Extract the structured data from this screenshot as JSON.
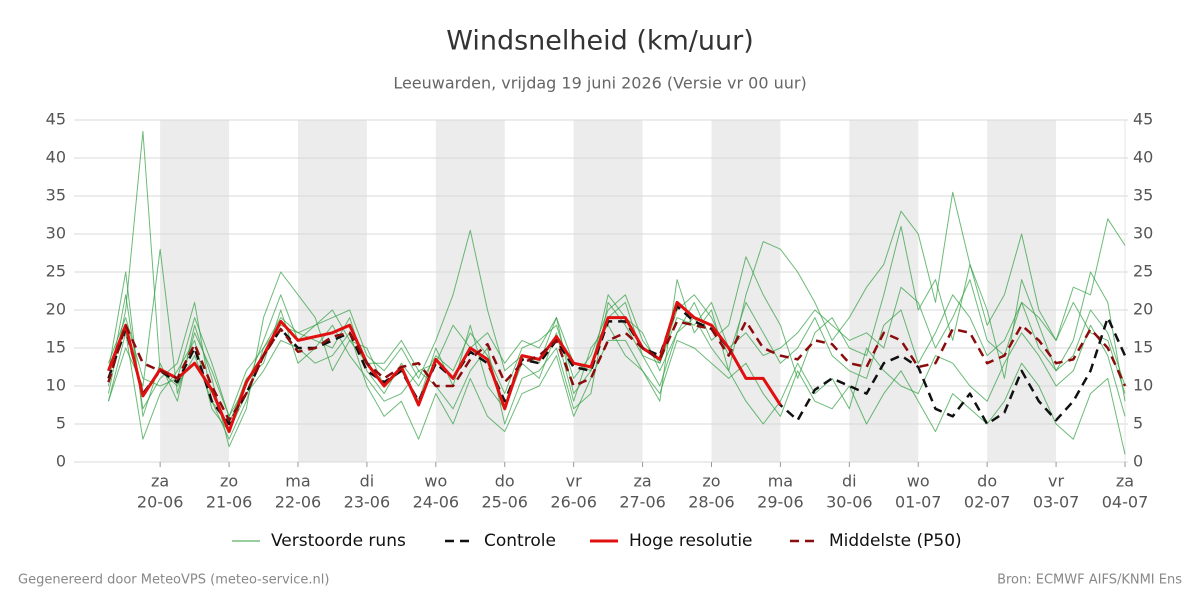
{
  "chart_data": {
    "type": "line",
    "title": "Windsnelheid (km/uur)",
    "subtitle": "Leeuwarden, vrijdag 19 juni 2026 (Versie vr 00 uur)",
    "footer_left": "Gegenereerd door MeteoVPS (meteo-service.nl)",
    "footer_right": "Bron: ECMWF AIFS/KNMI Ens",
    "xlim": [
      -2,
      59
    ],
    "xticks": [
      {
        "value": 3,
        "label": "za",
        "date": "20-06"
      },
      {
        "value": 7,
        "label": "zo",
        "date": "21-06"
      },
      {
        "value": 11,
        "label": "ma",
        "date": "22-06"
      },
      {
        "value": 15,
        "label": "di",
        "date": "23-06"
      },
      {
        "value": 19,
        "label": "wo",
        "date": "24-06"
      },
      {
        "value": 23,
        "label": "do",
        "date": "25-06"
      },
      {
        "value": 27,
        "label": "vr",
        "date": "26-06"
      },
      {
        "value": 31,
        "label": "za",
        "date": "27-06"
      },
      {
        "value": 35,
        "label": "zo",
        "date": "28-06"
      },
      {
        "value": 39,
        "label": "ma",
        "date": "29-06"
      },
      {
        "value": 43,
        "label": "di",
        "date": "30-06"
      },
      {
        "value": 47,
        "label": "wo",
        "date": "01-07"
      },
      {
        "value": 51,
        "label": "do",
        "date": "02-07"
      },
      {
        "value": 55,
        "label": "vr",
        "date": "03-07"
      },
      {
        "value": 59,
        "label": "za",
        "date": "04-07"
      }
    ],
    "shaded_bands": [
      [
        3,
        7
      ],
      [
        11,
        15
      ],
      [
        19,
        23
      ],
      [
        27,
        31
      ],
      [
        35,
        39
      ],
      [
        43,
        47
      ],
      [
        51,
        55
      ]
    ],
    "ylim": [
      0,
      45
    ],
    "yticks": [
      0,
      5,
      10,
      15,
      20,
      25,
      30,
      35,
      40,
      45
    ],
    "y2lim": [
      0,
      45
    ],
    "y2ticks": [
      0,
      5,
      10,
      15,
      20,
      25,
      30,
      35,
      40,
      45
    ],
    "grid": true,
    "legend": "bottom",
    "ensemble": {
      "name": "Verstoorde runs",
      "color": "#2e9e3e",
      "members": [
        [
          9,
          20,
          43.5,
          12,
          10,
          14,
          8,
          3,
          8,
          15,
          18,
          17,
          16,
          15,
          19,
          12,
          9,
          13,
          10,
          14,
          12,
          17,
          14,
          9,
          15,
          16,
          18,
          11,
          14,
          20,
          22,
          16,
          13,
          20,
          22,
          19,
          14,
          21,
          17,
          13,
          15,
          19,
          14,
          12,
          11,
          18,
          20,
          13,
          17,
          22,
          19,
          14,
          16,
          21,
          15,
          12,
          14,
          20,
          17,
          10
        ],
        [
          8,
          15,
          10,
          28,
          9,
          17,
          12,
          6,
          10,
          16,
          22,
          16,
          18,
          19,
          20,
          14,
          12,
          15,
          11,
          16,
          22,
          30.5,
          20,
          12,
          14,
          13,
          19,
          9,
          12,
          22,
          19,
          17,
          12,
          17,
          21,
          16,
          18,
          27,
          22,
          18,
          11,
          17,
          19,
          15,
          14,
          22,
          31,
          20,
          24,
          16,
          26,
          20,
          11,
          24,
          18,
          12,
          16,
          25,
          21,
          8
        ],
        [
          10,
          22,
          7,
          11,
          13,
          21,
          8,
          5,
          11,
          13,
          20,
          13,
          15,
          18,
          14,
          11,
          8,
          9,
          12,
          10,
          7,
          12,
          15,
          5,
          11,
          12,
          15,
          7,
          9,
          21,
          18,
          14,
          10,
          17,
          19,
          15,
          12,
          8,
          5,
          8,
          13,
          9,
          11,
          7,
          15,
          12,
          10,
          9,
          14,
          13,
          10,
          8,
          13,
          17,
          14,
          10,
          12,
          18,
          14,
          6
        ],
        [
          12,
          25,
          6,
          13,
          8,
          18,
          11,
          2,
          7,
          19,
          25,
          22,
          19,
          12,
          16,
          15,
          10,
          12,
          8,
          15,
          10,
          18,
          10,
          7,
          13,
          11,
          17,
          8,
          15,
          18,
          14,
          12,
          8,
          24,
          17,
          20,
          12,
          22,
          29,
          28,
          25,
          21,
          16,
          19,
          23,
          26,
          33,
          30,
          21,
          35.5,
          26,
          18,
          22,
          30,
          20,
          16,
          23,
          22,
          32,
          28.5
        ],
        [
          8,
          17,
          3,
          9,
          12,
          16,
          7,
          4,
          9,
          12,
          16,
          15,
          13,
          14,
          17,
          10,
          6,
          8,
          3,
          9,
          5,
          11,
          6,
          4,
          9,
          10,
          14,
          6,
          11,
          16,
          16,
          12,
          9,
          16,
          15,
          13,
          11,
          13,
          9,
          6,
          12,
          8,
          7,
          10,
          5,
          9,
          12,
          8,
          4,
          9,
          7,
          5,
          8,
          13,
          10,
          5,
          3,
          9,
          11,
          1
        ],
        [
          13,
          19,
          11,
          10,
          11,
          19,
          13,
          6,
          12,
          15,
          19,
          17,
          18,
          20,
          16,
          13,
          13,
          16,
          12,
          13,
          18,
          15,
          17,
          13,
          16,
          15,
          19,
          13,
          12,
          19,
          21,
          14,
          13,
          19,
          18,
          21,
          15,
          17,
          14,
          15,
          17,
          20,
          18,
          16,
          17,
          15,
          23,
          21,
          15,
          19,
          24,
          16,
          14,
          21,
          19,
          16,
          21,
          17,
          16,
          9
        ]
      ]
    },
    "series": [
      {
        "name": "Controle",
        "color": "#111111",
        "dash": true,
        "width": 2.5,
        "values": [
          11,
          17.5,
          9,
          12,
          10.5,
          15,
          8,
          5,
          9,
          14,
          17.5,
          15,
          15,
          16,
          17,
          12,
          10.5,
          12,
          8,
          13,
          11,
          14.5,
          13,
          8,
          13.5,
          13,
          16,
          12.5,
          12,
          18.5,
          18.5,
          15,
          14,
          20.5,
          18.5,
          17.5,
          15,
          11,
          11,
          7.5,
          5.5,
          9.5,
          11,
          10,
          9,
          13,
          14,
          12.5,
          7,
          6,
          9,
          5,
          6.5,
          12,
          8,
          5.5,
          8,
          12,
          19,
          14
        ]
      },
      {
        "name": "Hoge resolutie",
        "color": "#e01010",
        "dash": false,
        "width": 3,
        "values": [
          12,
          18,
          8.7,
          12.2,
          11,
          13,
          9.5,
          4,
          10.5,
          14,
          18.5,
          16,
          16.5,
          17,
          18,
          13,
          10,
          12.5,
          7.5,
          13.5,
          11,
          15,
          13.5,
          7,
          14,
          13.5,
          16.5,
          13,
          12.5,
          19,
          19,
          15,
          13.5,
          21,
          19,
          18,
          15,
          11,
          11,
          7.5
        ]
      },
      {
        "name": "Middelste (P50)",
        "color": "#8b0c0c",
        "dash": true,
        "width": 2.5,
        "values": [
          10.5,
          18,
          13,
          12,
          11,
          15.5,
          10,
          5.5,
          9,
          14,
          17.5,
          14.5,
          15,
          16.5,
          17,
          13,
          11,
          12.5,
          13,
          10,
          10,
          13.5,
          15.5,
          10.5,
          13,
          14,
          16,
          10,
          11,
          16,
          17,
          15,
          13.5,
          18.5,
          18,
          17.5,
          14,
          18.5,
          15,
          14,
          13.5,
          16,
          15.5,
          13,
          12.5,
          17,
          16,
          12.5,
          13,
          17.5,
          17,
          13,
          14,
          18,
          16,
          13,
          13.5,
          17.5,
          15,
          10
        ]
      }
    ]
  }
}
